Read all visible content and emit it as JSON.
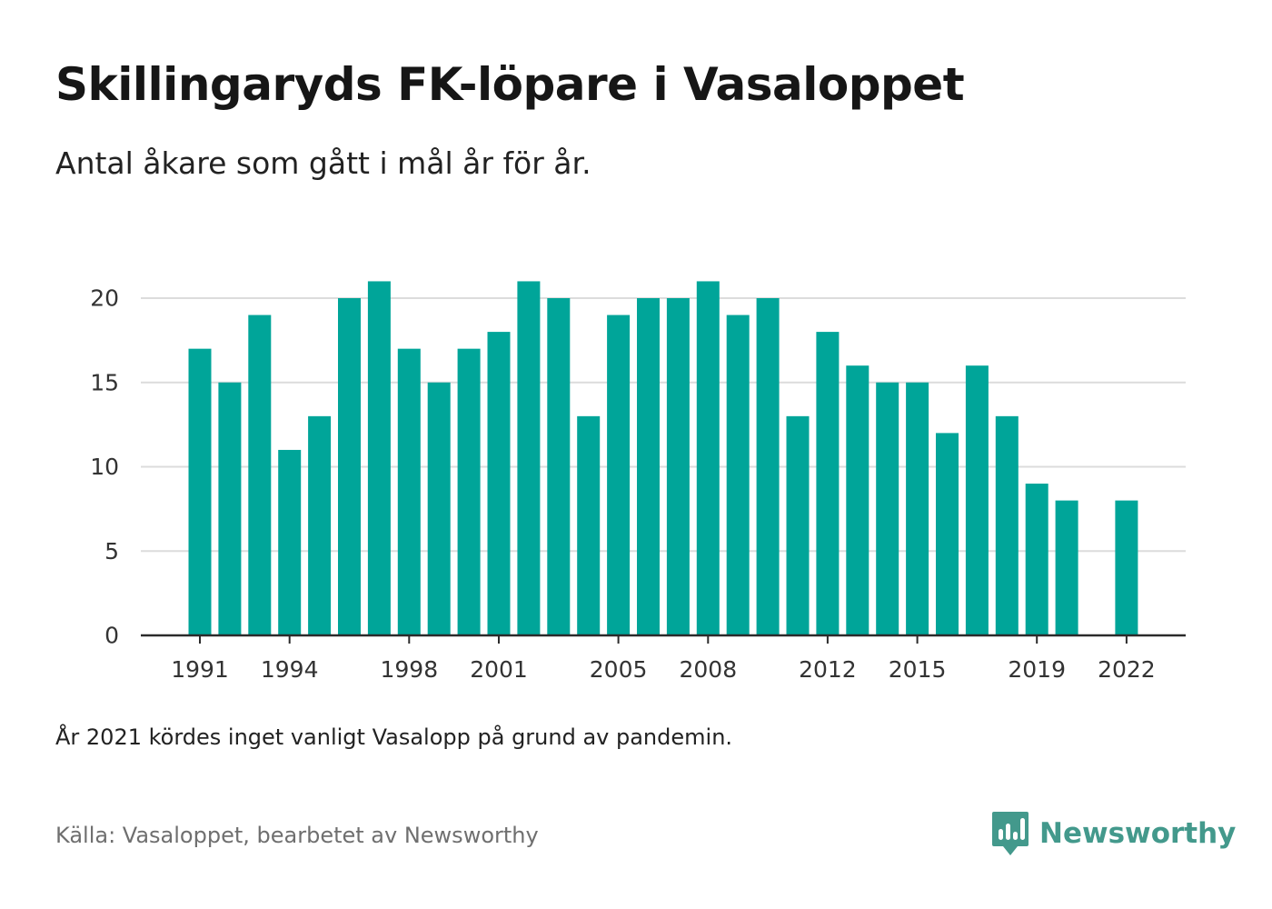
{
  "title": "Skillingaryds FK-löpare i Vasaloppet",
  "subtitle": "Antal åkare som gått i mål år för år.",
  "note": "År 2021 kördes inget vanligt Vasalopp på grund av pandemin.",
  "source": "Källa: Vasaloppet, bearbetet av Newsworthy",
  "brand": {
    "name": "Newsworthy",
    "icon": "newsworthy-logo-icon",
    "color": "#43998c"
  },
  "chart_data": {
    "type": "bar",
    "title": "Skillingaryds FK-löpare i Vasaloppet",
    "subtitle": "Antal åkare som gått i mål år för år.",
    "xlabel": "",
    "ylabel": "",
    "ylim": [
      0,
      22
    ],
    "yticks": [
      0,
      5,
      10,
      15,
      20
    ],
    "xticks": [
      1991,
      1994,
      1998,
      2001,
      2005,
      2008,
      2012,
      2015,
      2019,
      2022
    ],
    "grid": true,
    "legend": "none",
    "bar_color": "#00a599",
    "categories": [
      1991,
      1992,
      1993,
      1994,
      1995,
      1996,
      1997,
      1998,
      1999,
      2000,
      2001,
      2002,
      2003,
      2004,
      2005,
      2006,
      2007,
      2008,
      2009,
      2010,
      2011,
      2012,
      2013,
      2014,
      2015,
      2016,
      2017,
      2018,
      2019,
      2020,
      2021,
      2022
    ],
    "values": [
      17,
      15,
      19,
      11,
      13,
      20,
      21,
      17,
      15,
      17,
      18,
      21,
      20,
      13,
      19,
      20,
      20,
      21,
      19,
      20,
      13,
      18,
      16,
      15,
      15,
      12,
      16,
      13,
      9,
      8,
      null,
      8
    ]
  }
}
